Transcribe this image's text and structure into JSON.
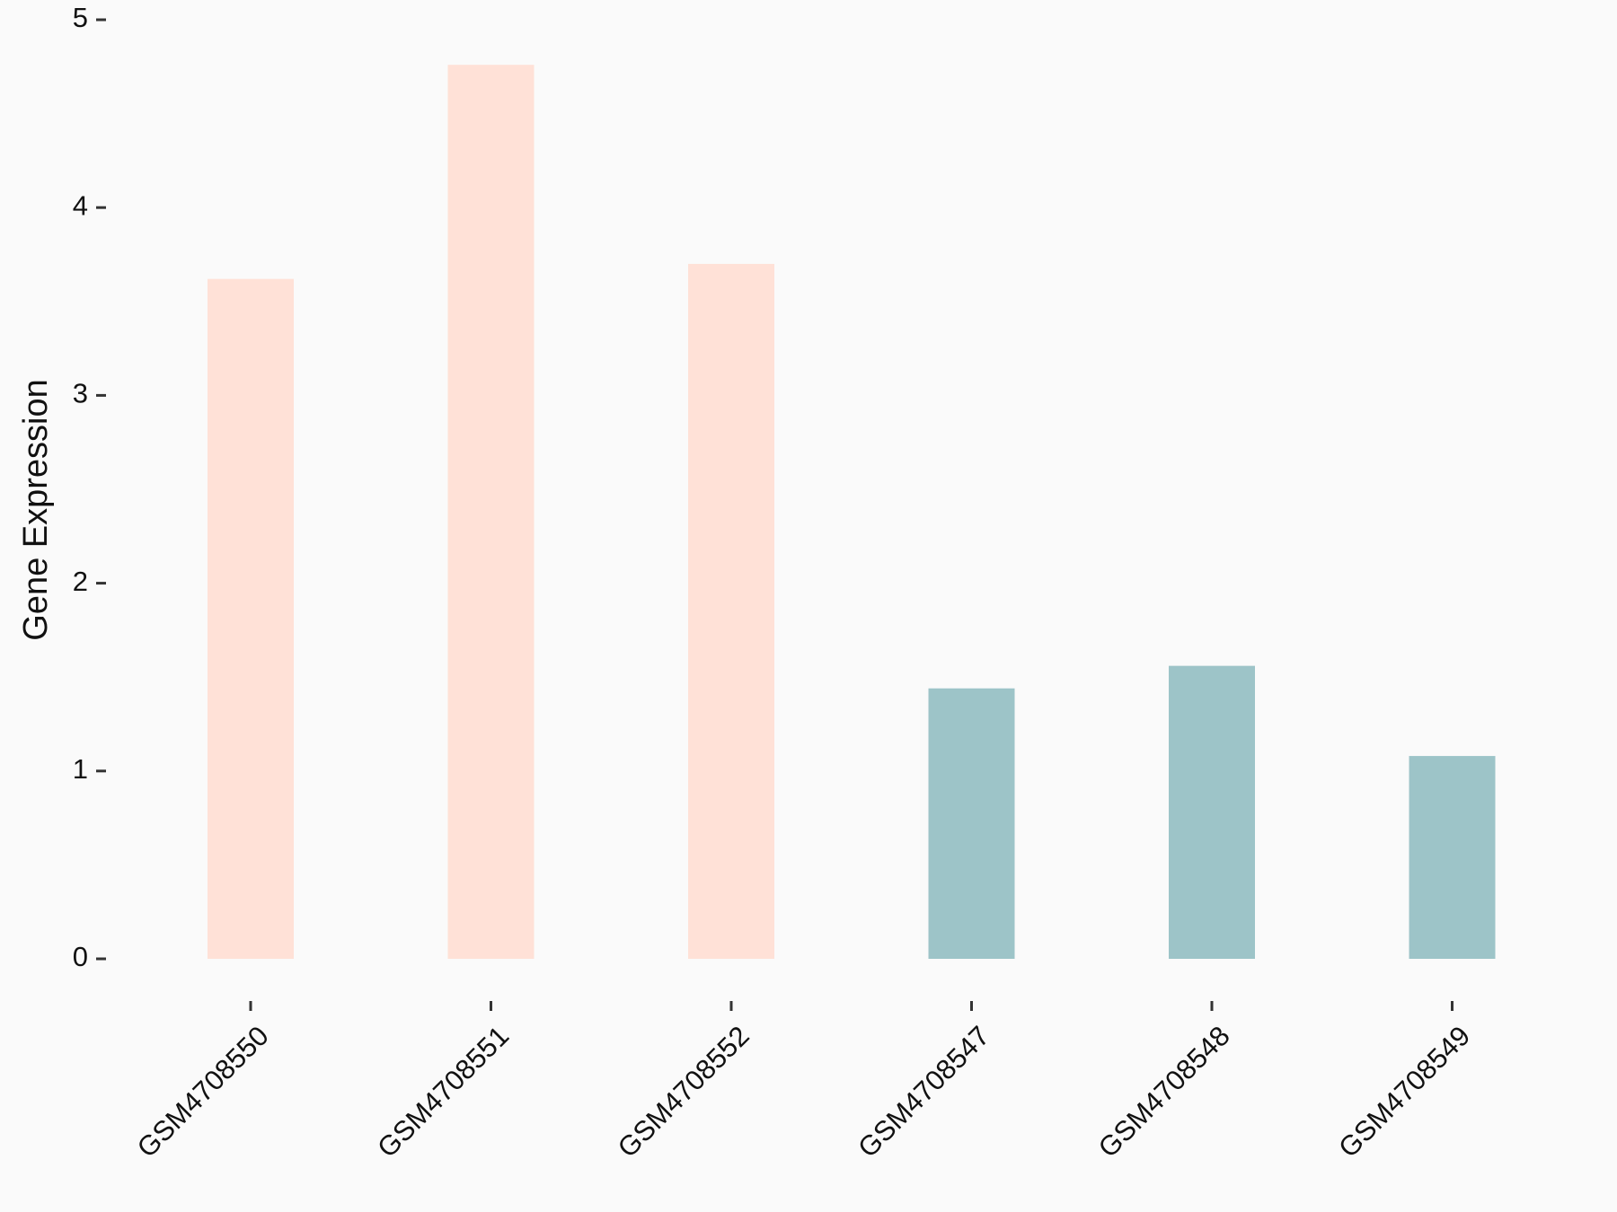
{
  "chart_data": {
    "type": "bar",
    "y_label": "Gene Expression",
    "categories": [
      "GSM4708550",
      "GSM4708551",
      "GSM4708552",
      "GSM4708547",
      "GSM4708548",
      "GSM4708549"
    ],
    "values": [
      3.62,
      4.76,
      3.7,
      1.44,
      1.56,
      1.08
    ],
    "colors": [
      "#ffe1d7",
      "#ffe1d7",
      "#ffe1d7",
      "#9dc4c8",
      "#9dc4c8",
      "#9dc4c8"
    ],
    "ylim": [
      0,
      5
    ],
    "yticks": [
      0,
      1,
      2,
      3,
      4,
      5
    ],
    "grid": false
  }
}
